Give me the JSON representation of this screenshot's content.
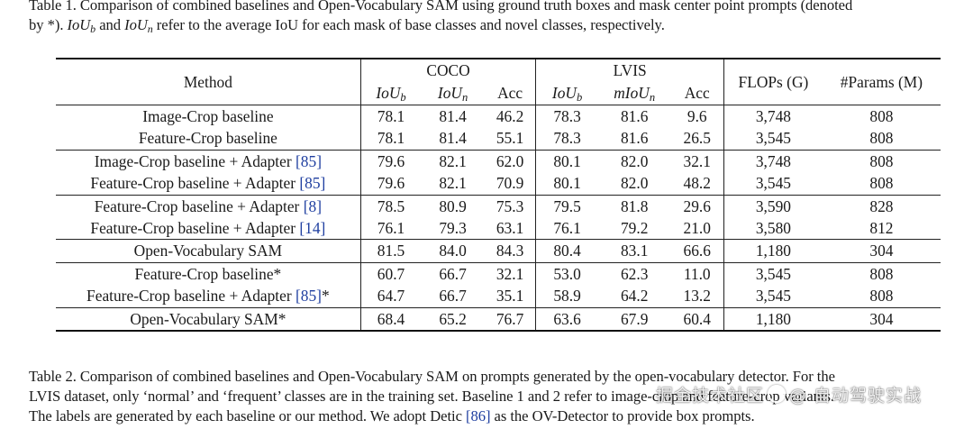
{
  "caption_top": {
    "line1": "Table 1. Comparison of combined baselines and Open-Vocabulary SAM using ground truth boxes and mask center point prompts (denoted",
    "line2_pre": "by *). ",
    "iou_b_base": "IoU",
    "iou_b_sub": "b",
    "and_text": " and ",
    "iou_n_base": "IoU",
    "iou_n_sub": "n",
    "line2_post": " refer to the average IoU for each mask of base classes and novel classes, respectively."
  },
  "table": {
    "method_header": "Method",
    "coco_header": "COCO",
    "lvis_header": "LVIS",
    "flops_header": "FLOPs (G)",
    "params_header": "#Params (M)",
    "sub_headers": {
      "coco_iou_b": "IoU",
      "coco_iou_b_sub": "b",
      "coco_iou_n": "IoU",
      "coco_iou_n_sub": "n",
      "coco_acc": "Acc",
      "lvis_iou_b": "IoU",
      "lvis_iou_b_sub": "b",
      "lvis_miou_n": "mIoU",
      "lvis_miou_n_sub": "n",
      "lvis_acc": "Acc"
    },
    "rows": [
      {
        "method": "Image-Crop baseline",
        "cite": "",
        "suffix": "",
        "values": [
          "78.1",
          "81.4",
          "46.2",
          "78.3",
          "81.6",
          "9.6",
          "3,748",
          "808"
        ]
      },
      {
        "method": "Feature-Crop baseline",
        "cite": "",
        "suffix": "",
        "values": [
          "78.1",
          "81.4",
          "55.1",
          "78.3",
          "81.6",
          "26.5",
          "3,545",
          "808"
        ]
      },
      {
        "method": "Image-Crop baseline + Adapter ",
        "cite": "[85]",
        "suffix": "",
        "values": [
          "79.6",
          "82.1",
          "62.0",
          "80.1",
          "82.0",
          "32.1",
          "3,748",
          "808"
        ]
      },
      {
        "method": "Feature-Crop baseline + Adapter ",
        "cite": "[85]",
        "suffix": "",
        "values": [
          "79.6",
          "82.1",
          "70.9",
          "80.1",
          "82.0",
          "48.2",
          "3,545",
          "808"
        ]
      },
      {
        "method": "Feature-Crop baseline + Adapter ",
        "cite": "[8]",
        "suffix": "",
        "values": [
          "78.5",
          "80.9",
          "75.3",
          "79.5",
          "81.8",
          "29.6",
          "3,590",
          "828"
        ]
      },
      {
        "method": "Feature-Crop baseline + Adapter ",
        "cite": "[14]",
        "suffix": "",
        "values": [
          "76.1",
          "79.3",
          "63.1",
          "76.1",
          "79.2",
          "21.0",
          "3,580",
          "812"
        ]
      },
      {
        "method": "Open-Vocabulary SAM",
        "cite": "",
        "suffix": "",
        "values": [
          "81.5",
          "84.0",
          "84.3",
          "80.4",
          "83.1",
          "66.6",
          "1,180",
          "304"
        ]
      },
      {
        "method": "Feature-Crop baseline*",
        "cite": "",
        "suffix": "",
        "values": [
          "60.7",
          "66.7",
          "32.1",
          "53.0",
          "62.3",
          "11.0",
          "3,545",
          "808"
        ]
      },
      {
        "method": "Feature-Crop baseline + Adapter ",
        "cite": "[85]",
        "suffix": "*",
        "values": [
          "64.7",
          "66.7",
          "35.1",
          "58.9",
          "64.2",
          "13.2",
          "3,545",
          "808"
        ]
      },
      {
        "method": "Open-Vocabulary SAM*",
        "cite": "",
        "suffix": "",
        "values": [
          "68.4",
          "65.2",
          "76.7",
          "63.6",
          "67.9",
          "60.4",
          "1,180",
          "304"
        ]
      }
    ]
  },
  "caption_bottom": {
    "line1": "Table 2. Comparison of combined baselines and Open-Vocabulary SAM on prompts generated by the open-vocabulary detector. For the",
    "line2": "LVIS dataset, only ‘normal’ and ‘frequent’ classes are in the training set. Baseline 1 and 2 refer to image-crop and feature-crop variants.",
    "line3_pre": "The labels are generated by each baseline or our method. We adopt Detic ",
    "line3_cite": "[86]",
    "line3_post": " as the OV-Detector to provide box prompts."
  },
  "watermark": {
    "text_left": "掘金技术社区",
    "text_right": "@ 自动驾驶实战"
  },
  "colors": {
    "citation": "#1f3fa0",
    "rule": "#111111"
  }
}
